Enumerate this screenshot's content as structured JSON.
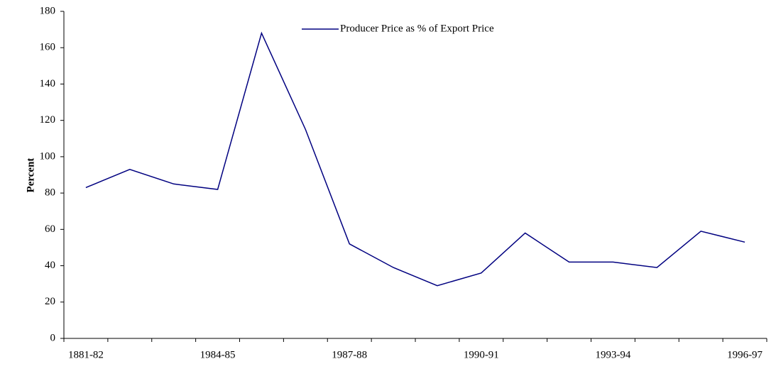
{
  "chart_data": {
    "type": "line",
    "y_label": "Percent",
    "categories": [
      "1881-82",
      null,
      null,
      "1984-85",
      null,
      null,
      "1987-88",
      null,
      null,
      "1990-91",
      null,
      null,
      "1993-94",
      null,
      null,
      "1996-97"
    ],
    "series": [
      {
        "name": "Producer Price as % of Export Price",
        "color": "#000080",
        "values": [
          83,
          93,
          85,
          82,
          168,
          115,
          52,
          39,
          29,
          36,
          58,
          42,
          42,
          39,
          59,
          53
        ]
      }
    ],
    "ylim": [
      0,
      180
    ],
    "yticks": [
      0,
      20,
      40,
      60,
      80,
      100,
      120,
      140,
      160,
      180
    ],
    "legend": "top"
  }
}
